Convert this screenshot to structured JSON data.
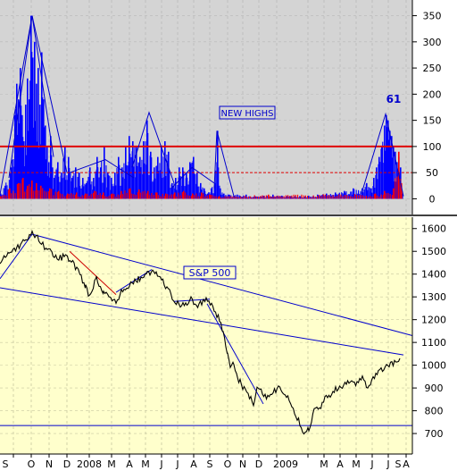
{
  "chart_data": [
    {
      "type": "bar",
      "panel": "top",
      "title": "",
      "annotation_box": "NEW HIGHS",
      "last_value_label": "61",
      "ylim": [
        -30,
        380
      ],
      "yticks": [
        0,
        50,
        100,
        150,
        200,
        250,
        300,
        350
      ],
      "reference_lines": [
        {
          "value": 100,
          "style": "solid",
          "color": "#e00000"
        },
        {
          "value": 50,
          "style": "dashed",
          "color": "#e00000"
        }
      ],
      "grid": true,
      "background": "#d4d4d4",
      "series": [
        {
          "color": "#0000ff",
          "kind": "bars",
          "peaks": [
            [
              0,
              10
            ],
            [
              5,
              25
            ],
            [
              12,
              60
            ],
            [
              16,
              160
            ],
            [
              18,
              220
            ],
            [
              20,
              190
            ],
            [
              22,
              250
            ],
            [
              24,
              160
            ],
            [
              26,
              110
            ],
            [
              28,
              180
            ],
            [
              30,
              230
            ],
            [
              32,
              190
            ],
            [
              34,
              350
            ],
            [
              36,
              270
            ],
            [
              38,
              300
            ],
            [
              40,
              220
            ],
            [
              42,
              250
            ],
            [
              44,
              180
            ],
            [
              46,
              280
            ],
            [
              48,
              190
            ],
            [
              50,
              140
            ],
            [
              52,
              100
            ],
            [
              54,
              70
            ],
            [
              56,
              120
            ],
            [
              58,
              60
            ],
            [
              60,
              40
            ],
            [
              64,
              70
            ],
            [
              68,
              50
            ],
            [
              72,
              100
            ],
            [
              76,
              80
            ],
            [
              80,
              40
            ],
            [
              84,
              60
            ],
            [
              88,
              50
            ],
            [
              92,
              40
            ],
            [
              96,
              30
            ],
            [
              100,
              60
            ],
            [
              104,
              40
            ],
            [
              108,
              80
            ],
            [
              112,
              60
            ],
            [
              116,
              100
            ],
            [
              120,
              50
            ],
            [
              124,
              40
            ],
            [
              128,
              50
            ],
            [
              132,
              80
            ],
            [
              136,
              60
            ],
            [
              140,
              100
            ],
            [
              144,
              120
            ],
            [
              148,
              110
            ],
            [
              152,
              100
            ],
            [
              156,
              80
            ],
            [
              160,
              110
            ],
            [
              164,
              150
            ],
            [
              168,
              90
            ],
            [
              172,
              60
            ],
            [
              176,
              80
            ],
            [
              180,
              100
            ],
            [
              184,
              110
            ],
            [
              188,
              90
            ],
            [
              192,
              30
            ],
            [
              196,
              40
            ],
            [
              200,
              60
            ],
            [
              204,
              60
            ],
            [
              208,
              50
            ],
            [
              212,
              70
            ],
            [
              216,
              80
            ],
            [
              220,
              50
            ],
            [
              224,
              30
            ],
            [
              228,
              20
            ],
            [
              232,
              10
            ],
            [
              236,
              20
            ],
            [
              240,
              30
            ],
            [
              243,
              130
            ],
            [
              246,
              20
            ],
            [
              250,
              10
            ],
            [
              256,
              8
            ],
            [
              265,
              8
            ],
            [
              275,
              8
            ],
            [
              285,
              5
            ],
            [
              295,
              6
            ],
            [
              305,
              8
            ],
            [
              315,
              6
            ],
            [
              325,
              5
            ],
            [
              335,
              5
            ],
            [
              345,
              6
            ],
            [
              355,
              8
            ],
            [
              365,
              10
            ],
            [
              375,
              12
            ],
            [
              385,
              15
            ],
            [
              395,
              20
            ],
            [
              405,
              20
            ],
            [
              410,
              30
            ],
            [
              415,
              20
            ],
            [
              418,
              40
            ],
            [
              421,
              60
            ],
            [
              424,
              80
            ],
            [
              427,
              100
            ],
            [
              430,
              140
            ],
            [
              432,
              160
            ],
            [
              434,
              150
            ],
            [
              436,
              130
            ],
            [
              438,
              120
            ],
            [
              440,
              100
            ],
            [
              442,
              90
            ],
            [
              444,
              70
            ],
            [
              446,
              80
            ],
            [
              448,
              60
            ],
            [
              450,
              10
            ]
          ]
        },
        {
          "color": "#ff0000",
          "kind": "bars",
          "peaks": [
            [
              0,
              5
            ],
            [
              10,
              20
            ],
            [
              20,
              30
            ],
            [
              25,
              40
            ],
            [
              30,
              25
            ],
            [
              35,
              35
            ],
            [
              40,
              30
            ],
            [
              45,
              25
            ],
            [
              55,
              20
            ],
            [
              65,
              15
            ],
            [
              75,
              10
            ],
            [
              85,
              12
            ],
            [
              95,
              10
            ],
            [
              105,
              15
            ],
            [
              115,
              12
            ],
            [
              125,
              10
            ],
            [
              135,
              15
            ],
            [
              145,
              20
            ],
            [
              155,
              18
            ],
            [
              165,
              15
            ],
            [
              175,
              12
            ],
            [
              185,
              10
            ],
            [
              195,
              12
            ],
            [
              205,
              15
            ],
            [
              215,
              10
            ],
            [
              225,
              12
            ],
            [
              235,
              8
            ],
            [
              245,
              5
            ],
            [
              300,
              8
            ],
            [
              420,
              10
            ],
            [
              430,
              15
            ],
            [
              440,
              20
            ],
            [
              446,
              90
            ],
            [
              449,
              30
            ]
          ]
        }
      ],
      "trend_lines_blue": [
        [
          [
            0,
            8
          ],
          [
            36,
            350
          ],
          [
            75,
            50
          ]
        ],
        [
          [
            10,
            40
          ],
          [
            36,
            350
          ],
          [
            60,
            80
          ]
        ],
        [
          [
            78,
            50
          ],
          [
            118,
            75
          ],
          [
            150,
            40
          ]
        ],
        [
          [
            148,
            60
          ],
          [
            167,
            165
          ],
          [
            195,
            30
          ]
        ],
        [
          [
            192,
            20
          ],
          [
            215,
            60
          ],
          [
            240,
            30
          ]
        ],
        [
          [
            240,
            20
          ],
          [
            243,
            130
          ],
          [
            262,
            5
          ]
        ],
        [
          [
            405,
            10
          ],
          [
            432,
            162
          ],
          [
            452,
            5
          ]
        ]
      ]
    },
    {
      "type": "line",
      "panel": "bottom",
      "title": "",
      "annotation_box": "S&P 500",
      "ylim": [
        610,
        1650
      ],
      "yticks": [
        700,
        800,
        900,
        1000,
        1100,
        1200,
        1300,
        1400,
        1500,
        1600
      ],
      "grid": true,
      "background": "#ffffcc",
      "x_tick_labels": [
        "S",
        "O",
        "N",
        "D",
        "2008",
        "M",
        "A",
        "M",
        "J",
        "J",
        "A",
        "S",
        "O",
        "N",
        "D",
        "2009",
        "M",
        "A",
        "M",
        "J",
        "J",
        "A",
        "S"
      ],
      "series": [
        {
          "name": "",
          "color": "#000000",
          "points": [
            [
              0,
              1460
            ],
            [
              10,
              1490
            ],
            [
              20,
              1520
            ],
            [
              30,
              1550
            ],
            [
              36,
              1575
            ],
            [
              42,
              1560
            ],
            [
              50,
              1520
            ],
            [
              58,
              1490
            ],
            [
              66,
              1470
            ],
            [
              74,
              1480
            ],
            [
              80,
              1460
            ],
            [
              88,
              1410
            ],
            [
              96,
              1340
            ],
            [
              100,
              1310
            ],
            [
              108,
              1380
            ],
            [
              116,
              1320
            ],
            [
              124,
              1290
            ],
            [
              130,
              1270
            ],
            [
              136,
              1320
            ],
            [
              145,
              1350
            ],
            [
              155,
              1380
            ],
            [
              165,
              1400
            ],
            [
              172,
              1420
            ],
            [
              178,
              1390
            ],
            [
              184,
              1360
            ],
            [
              190,
              1320
            ],
            [
              196,
              1280
            ],
            [
              202,
              1260
            ],
            [
              208,
              1270
            ],
            [
              214,
              1290
            ],
            [
              220,
              1260
            ],
            [
              228,
              1280
            ],
            [
              234,
              1290
            ],
            [
              240,
              1240
            ],
            [
              246,
              1200
            ],
            [
              250,
              1150
            ],
            [
              255,
              1050
            ],
            [
              258,
              980
            ],
            [
              262,
              1010
            ],
            [
              266,
              950
            ],
            [
              272,
              900
            ],
            [
              278,
              870
            ],
            [
              284,
              830
            ],
            [
              288,
              900
            ],
            [
              294,
              880
            ],
            [
              300,
              860
            ],
            [
              306,
              880
            ],
            [
              312,
              900
            ],
            [
              318,
              870
            ],
            [
              324,
              850
            ],
            [
              330,
              800
            ],
            [
              336,
              740
            ],
            [
              342,
              700
            ],
            [
              346,
              720
            ],
            [
              352,
              800
            ],
            [
              358,
              810
            ],
            [
              364,
              850
            ],
            [
              370,
              870
            ],
            [
              376,
              900
            ],
            [
              382,
              900
            ],
            [
              388,
              920
            ],
            [
              394,
              930
            ],
            [
              400,
              920
            ],
            [
              406,
              940
            ],
            [
              412,
              900
            ],
            [
              418,
              950
            ],
            [
              424,
              970
            ],
            [
              430,
              990
            ],
            [
              436,
              1000
            ],
            [
              442,
              1010
            ],
            [
              448,
              1030
            ]
          ]
        }
      ],
      "trend_lines_blue": [
        [
          [
            0,
            1380
          ],
          [
            36,
            1575
          ],
          [
            462,
            1130
          ]
        ],
        [
          [
            0,
            1340
          ],
          [
            452,
            1045
          ]
        ],
        [
          [
            0,
            735
          ],
          [
            462,
            735
          ]
        ],
        [
          [
            130,
            1320
          ],
          [
            170,
            1420
          ]
        ],
        [
          [
            195,
            1280
          ],
          [
            235,
            1290
          ]
        ],
        [
          [
            232,
            1270
          ],
          [
            295,
            830
          ]
        ]
      ],
      "trend_lines_red": [
        [
          [
            78,
            1500
          ],
          [
            130,
            1310
          ]
        ]
      ]
    }
  ]
}
